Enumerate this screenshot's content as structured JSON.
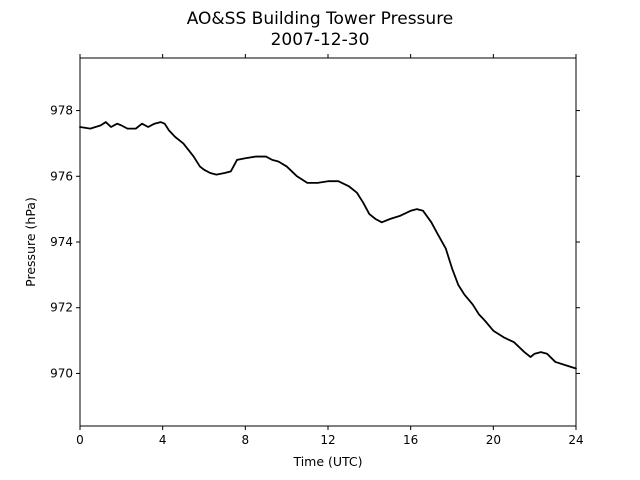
{
  "chart_data": {
    "type": "line",
    "title": "AO&SS Building Tower Pressure",
    "subtitle": "2007-12-30",
    "xlabel": "Time (UTC)",
    "ylabel": "Pressure (hPa)",
    "xlim": [
      0,
      24
    ],
    "ylim": [
      968.4,
      979.6
    ],
    "x_ticks": [
      0,
      4,
      8,
      12,
      16,
      20,
      24
    ],
    "y_ticks": [
      970,
      972,
      974,
      976,
      978
    ],
    "grid": false,
    "legend": "none",
    "line_color": "#000000",
    "series": [
      {
        "x": [
          0.0,
          0.5,
          1.0,
          1.25,
          1.5,
          1.8,
          2.0,
          2.3,
          2.7,
          3.0,
          3.3,
          3.6,
          3.9,
          4.1,
          4.3,
          4.6,
          5.0,
          5.5,
          5.8,
          6.0,
          6.3,
          6.6,
          7.0,
          7.3,
          7.6,
          8.0,
          8.5,
          9.0,
          9.3,
          9.6,
          10.0,
          10.5,
          11.0,
          11.5,
          12.0,
          12.5,
          13.0,
          13.4,
          13.7,
          14.0,
          14.3,
          14.6,
          15.0,
          15.5,
          16.0,
          16.3,
          16.6,
          17.0,
          17.3,
          17.7,
          18.0,
          18.3,
          18.6,
          19.0,
          19.3,
          19.6,
          20.0,
          20.5,
          21.0,
          21.5,
          21.8,
          22.0,
          22.3,
          22.6,
          23.0,
          23.5,
          24.0
        ],
        "y": [
          977.5,
          977.45,
          977.55,
          977.65,
          977.5,
          977.6,
          977.55,
          977.45,
          977.45,
          977.6,
          977.5,
          977.6,
          977.65,
          977.6,
          977.4,
          977.2,
          977.0,
          976.6,
          976.3,
          976.2,
          976.1,
          976.05,
          976.1,
          976.15,
          976.5,
          976.55,
          976.6,
          976.6,
          976.5,
          976.45,
          976.3,
          976.0,
          975.8,
          975.8,
          975.85,
          975.85,
          975.7,
          975.5,
          975.2,
          974.85,
          974.7,
          974.6,
          974.7,
          974.8,
          974.95,
          975.0,
          974.95,
          974.6,
          974.25,
          973.8,
          973.2,
          972.7,
          972.4,
          972.1,
          971.8,
          971.6,
          971.3,
          971.1,
          970.95,
          970.65,
          970.5,
          970.6,
          970.65,
          970.6,
          970.35,
          970.25,
          970.15
        ]
      }
    ]
  }
}
